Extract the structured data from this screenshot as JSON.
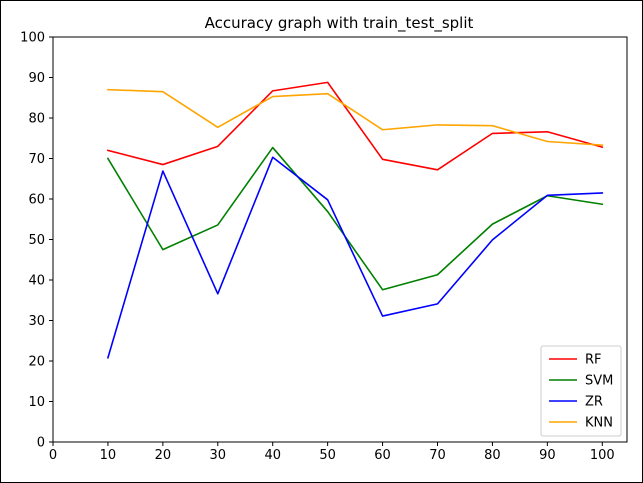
{
  "chart_data": {
    "type": "line",
    "title": "Accuracy graph with train_test_split",
    "xlabel": "",
    "ylabel": "",
    "x": [
      10,
      20,
      30,
      40,
      50,
      60,
      70,
      80,
      90,
      100
    ],
    "xlim": [
      0,
      104.5
    ],
    "ylim": [
      0,
      100
    ],
    "xticks": [
      0,
      10,
      20,
      30,
      40,
      50,
      60,
      70,
      80,
      90,
      100
    ],
    "yticks": [
      0,
      10,
      20,
      30,
      40,
      50,
      60,
      70,
      80,
      90,
      100
    ],
    "grid": false,
    "legend_position": "bottom-right",
    "series": [
      {
        "name": "RF",
        "color": "#ff0000",
        "values": [
          72.0,
          68.5,
          73.0,
          86.7,
          88.8,
          69.8,
          67.2,
          76.2,
          76.6,
          72.8
        ]
      },
      {
        "name": "SVM",
        "color": "#008000",
        "values": [
          70.0,
          47.5,
          53.6,
          72.7,
          56.9,
          37.6,
          41.3,
          53.8,
          60.8,
          58.7
        ]
      },
      {
        "name": "ZR",
        "color": "#0000ff",
        "values": [
          20.8,
          66.9,
          36.6,
          70.3,
          59.8,
          31.1,
          34.1,
          49.9,
          60.9,
          61.5
        ]
      },
      {
        "name": "KNN",
        "color": "#ffa500",
        "values": [
          87.0,
          86.5,
          77.7,
          85.3,
          86.0,
          77.1,
          78.3,
          78.1,
          74.2,
          73.3
        ]
      }
    ]
  }
}
